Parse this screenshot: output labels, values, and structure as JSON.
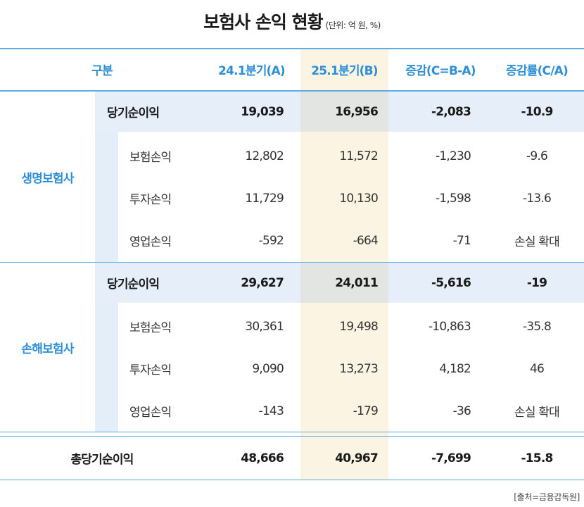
{
  "title": "보험사 손익 현황",
  "unit_note": "(단위: 억 원, %)",
  "colors": {
    "accent": "#2e8fd6",
    "rule": "#5aaee6",
    "highlight_col": "#fbf4e2",
    "subtotal_band": "#e6eef9"
  },
  "headers": [
    "구분",
    "24.1분기(A)",
    "25.1분기(B)",
    "증감(C=B-A)",
    "증감률(C/A)"
  ],
  "groups": [
    {
      "name": "생명보험사",
      "rows": [
        {
          "label": "당기순이익",
          "a": "19,039",
          "b": "16,956",
          "c": "-2,083",
          "rate": "-10.9"
        },
        {
          "label": "보험손익",
          "a": "12,802",
          "b": "11,572",
          "c": "-1,230",
          "rate": "-9.6"
        },
        {
          "label": "투자손익",
          "a": "11,729",
          "b": "10,130",
          "c": "-1,598",
          "rate": "-13.6"
        },
        {
          "label": "영업손익",
          "a": "-592",
          "b": "-664",
          "c": "-71",
          "rate": "손실 확대"
        }
      ]
    },
    {
      "name": "손해보험사",
      "rows": [
        {
          "label": "당기순이익",
          "a": "29,627",
          "b": "24,011",
          "c": "-5,616",
          "rate": "-19"
        },
        {
          "label": "보험손익",
          "a": "30,361",
          "b": "19,498",
          "c": "-10,863",
          "rate": "-35.8"
        },
        {
          "label": "투자손익",
          "a": "9,090",
          "b": "13,273",
          "c": "4,182",
          "rate": "46"
        },
        {
          "label": "영업손익",
          "a": "-143",
          "b": "-179",
          "c": "-36",
          "rate": "손실 확대"
        }
      ]
    }
  ],
  "total": {
    "label": "총당기순이익",
    "a": "48,666",
    "b": "40,967",
    "c": "-7,699",
    "rate": "-15.8"
  },
  "source": "[출처=금융감독원]"
}
